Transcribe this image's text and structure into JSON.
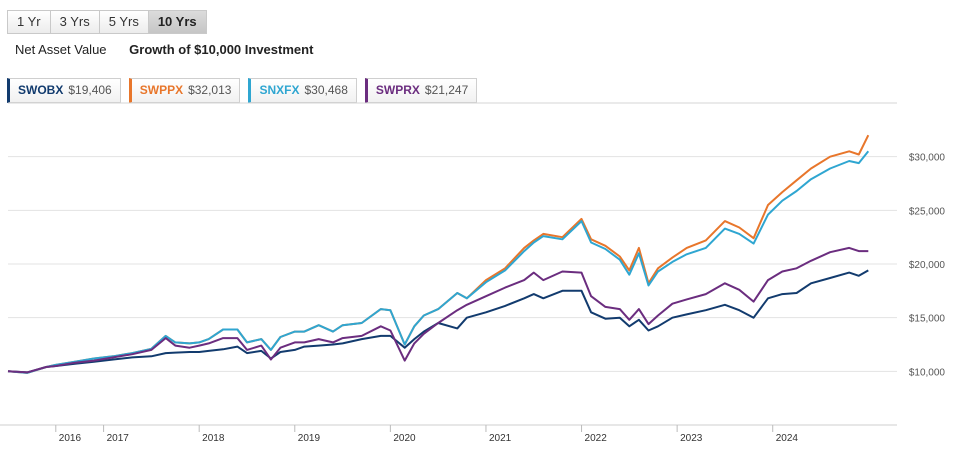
{
  "range_tabs": [
    {
      "label": "1 Yr",
      "active": false
    },
    {
      "label": "3 Yrs",
      "active": false
    },
    {
      "label": "5 Yrs",
      "active": false
    },
    {
      "label": "10 Yrs",
      "active": true
    }
  ],
  "view_tabs": [
    {
      "label": "Net Asset Value",
      "active": false
    },
    {
      "label": "Growth of $10,000 Investment",
      "active": true
    }
  ],
  "chart_data": {
    "type": "line",
    "title": "",
    "xlabel": "",
    "ylabel": "",
    "x_tick_labels": [
      "2016",
      "2017",
      "2018",
      "2019",
      "2020",
      "2021",
      "2022",
      "2023",
      "2024"
    ],
    "x_tick_years": [
      2016.0,
      2016.5,
      2017.5,
      2018.5,
      2019.5,
      2020.5,
      2021.5,
      2022.5,
      2023.5
    ],
    "x_range": [
      2015.5,
      2024.8
    ],
    "y_ticks": [
      10000,
      15000,
      20000,
      25000,
      30000
    ],
    "y_tick_labels": [
      "$10,000",
      "$15,000",
      "$20,000",
      "$25,000",
      "$30,000"
    ],
    "ylim": [
      5000,
      35000
    ],
    "grid": true,
    "legend_position": "top",
    "series": [
      {
        "name": "SWOBX",
        "ending_value": "$19,406",
        "color": "#123b6e",
        "points": [
          [
            2015.5,
            10000
          ],
          [
            2015.7,
            9900
          ],
          [
            2015.9,
            10400
          ],
          [
            2016.0,
            10500
          ],
          [
            2016.2,
            10700
          ],
          [
            2016.4,
            10900
          ],
          [
            2016.6,
            11100
          ],
          [
            2016.8,
            11300
          ],
          [
            2017.0,
            11400
          ],
          [
            2017.15,
            11700
          ],
          [
            2017.25,
            11750
          ],
          [
            2017.4,
            11800
          ],
          [
            2017.5,
            11800
          ],
          [
            2017.6,
            11900
          ],
          [
            2017.75,
            12050
          ],
          [
            2017.9,
            12300
          ],
          [
            2018.0,
            11700
          ],
          [
            2018.15,
            11900
          ],
          [
            2018.25,
            11200
          ],
          [
            2018.35,
            11800
          ],
          [
            2018.5,
            12000
          ],
          [
            2018.6,
            12300
          ],
          [
            2018.75,
            12400
          ],
          [
            2018.9,
            12500
          ],
          [
            2019.0,
            12600
          ],
          [
            2019.2,
            13000
          ],
          [
            2019.4,
            13300
          ],
          [
            2019.5,
            13300
          ],
          [
            2019.65,
            12200
          ],
          [
            2019.75,
            13000
          ],
          [
            2019.85,
            13700
          ],
          [
            2020.0,
            14500
          ],
          [
            2020.2,
            14000
          ],
          [
            2020.3,
            15000
          ],
          [
            2020.5,
            15500
          ],
          [
            2020.7,
            16100
          ],
          [
            2020.9,
            16800
          ],
          [
            2021.0,
            17200
          ],
          [
            2021.1,
            16800
          ],
          [
            2021.3,
            17500
          ],
          [
            2021.5,
            17500
          ],
          [
            2021.6,
            15500
          ],
          [
            2021.75,
            14900
          ],
          [
            2021.9,
            15000
          ],
          [
            2022.0,
            14200
          ],
          [
            2022.1,
            14800
          ],
          [
            2022.2,
            13800
          ],
          [
            2022.3,
            14200
          ],
          [
            2022.45,
            15000
          ],
          [
            2022.6,
            15300
          ],
          [
            2022.8,
            15700
          ],
          [
            2023.0,
            16200
          ],
          [
            2023.15,
            15700
          ],
          [
            2023.3,
            15000
          ],
          [
            2023.45,
            16800
          ],
          [
            2023.6,
            17200
          ],
          [
            2023.75,
            17300
          ],
          [
            2023.9,
            18200
          ],
          [
            2024.1,
            18700
          ],
          [
            2024.3,
            19200
          ],
          [
            2024.4,
            18900
          ],
          [
            2024.5,
            19400
          ]
        ]
      },
      {
        "name": "SWPPX",
        "ending_value": "$32,013",
        "color": "#e8762b",
        "points": [
          [
            2015.5,
            10000
          ],
          [
            2015.7,
            9850
          ],
          [
            2015.9,
            10400
          ],
          [
            2016.0,
            10600
          ],
          [
            2016.2,
            10900
          ],
          [
            2016.4,
            11200
          ],
          [
            2016.6,
            11400
          ],
          [
            2016.8,
            11700
          ],
          [
            2017.0,
            12100
          ],
          [
            2017.15,
            13300
          ],
          [
            2017.25,
            12700
          ],
          [
            2017.4,
            12600
          ],
          [
            2017.5,
            12700
          ],
          [
            2017.6,
            13000
          ],
          [
            2017.75,
            13900
          ],
          [
            2017.9,
            13900
          ],
          [
            2018.0,
            12700
          ],
          [
            2018.15,
            13000
          ],
          [
            2018.25,
            12000
          ],
          [
            2018.35,
            13200
          ],
          [
            2018.5,
            13700
          ],
          [
            2018.6,
            13700
          ],
          [
            2018.75,
            14300
          ],
          [
            2018.9,
            13700
          ],
          [
            2019.0,
            14300
          ],
          [
            2019.2,
            14500
          ],
          [
            2019.4,
            15800
          ],
          [
            2019.5,
            15700
          ],
          [
            2019.65,
            12500
          ],
          [
            2019.75,
            14200
          ],
          [
            2019.85,
            15200
          ],
          [
            2020.0,
            15800
          ],
          [
            2020.2,
            17300
          ],
          [
            2020.3,
            16800
          ],
          [
            2020.5,
            18500
          ],
          [
            2020.7,
            19600
          ],
          [
            2020.9,
            21500
          ],
          [
            2021.0,
            22200
          ],
          [
            2021.1,
            22800
          ],
          [
            2021.3,
            22500
          ],
          [
            2021.5,
            24200
          ],
          [
            2021.6,
            22300
          ],
          [
            2021.75,
            21700
          ],
          [
            2021.9,
            20700
          ],
          [
            2022.0,
            19400
          ],
          [
            2022.1,
            21500
          ],
          [
            2022.2,
            18200
          ],
          [
            2022.3,
            19600
          ],
          [
            2022.45,
            20600
          ],
          [
            2022.6,
            21500
          ],
          [
            2022.8,
            22200
          ],
          [
            2023.0,
            24000
          ],
          [
            2023.15,
            23400
          ],
          [
            2023.3,
            22400
          ],
          [
            2023.45,
            25500
          ],
          [
            2023.6,
            26700
          ],
          [
            2023.75,
            27800
          ],
          [
            2023.9,
            28900
          ],
          [
            2024.1,
            30000
          ],
          [
            2024.3,
            30500
          ],
          [
            2024.4,
            30200
          ],
          [
            2024.5,
            32000
          ]
        ]
      },
      {
        "name": "SNXFX",
        "ending_value": "$30,468",
        "color": "#2fa6d1",
        "points": [
          [
            2015.5,
            10000
          ],
          [
            2015.7,
            9850
          ],
          [
            2015.9,
            10400
          ],
          [
            2016.0,
            10600
          ],
          [
            2016.2,
            10900
          ],
          [
            2016.4,
            11200
          ],
          [
            2016.6,
            11400
          ],
          [
            2016.8,
            11700
          ],
          [
            2017.0,
            12100
          ],
          [
            2017.15,
            13300
          ],
          [
            2017.25,
            12700
          ],
          [
            2017.4,
            12600
          ],
          [
            2017.5,
            12700
          ],
          [
            2017.6,
            13000
          ],
          [
            2017.75,
            13900
          ],
          [
            2017.9,
            13900
          ],
          [
            2018.0,
            12700
          ],
          [
            2018.15,
            13000
          ],
          [
            2018.25,
            12000
          ],
          [
            2018.35,
            13200
          ],
          [
            2018.5,
            13700
          ],
          [
            2018.6,
            13700
          ],
          [
            2018.75,
            14300
          ],
          [
            2018.9,
            13700
          ],
          [
            2019.0,
            14300
          ],
          [
            2019.2,
            14500
          ],
          [
            2019.4,
            15800
          ],
          [
            2019.5,
            15700
          ],
          [
            2019.65,
            12500
          ],
          [
            2019.75,
            14200
          ],
          [
            2019.85,
            15200
          ],
          [
            2020.0,
            15800
          ],
          [
            2020.2,
            17300
          ],
          [
            2020.3,
            16800
          ],
          [
            2020.5,
            18300
          ],
          [
            2020.7,
            19400
          ],
          [
            2020.9,
            21200
          ],
          [
            2021.0,
            22000
          ],
          [
            2021.1,
            22600
          ],
          [
            2021.3,
            22300
          ],
          [
            2021.5,
            24000
          ],
          [
            2021.6,
            22000
          ],
          [
            2021.75,
            21400
          ],
          [
            2021.9,
            20400
          ],
          [
            2022.0,
            19000
          ],
          [
            2022.1,
            21000
          ],
          [
            2022.2,
            18000
          ],
          [
            2022.3,
            19300
          ],
          [
            2022.45,
            20200
          ],
          [
            2022.6,
            20900
          ],
          [
            2022.8,
            21500
          ],
          [
            2023.0,
            23300
          ],
          [
            2023.15,
            22800
          ],
          [
            2023.3,
            21900
          ],
          [
            2023.45,
            24600
          ],
          [
            2023.6,
            25900
          ],
          [
            2023.75,
            26800
          ],
          [
            2023.9,
            27900
          ],
          [
            2024.1,
            28900
          ],
          [
            2024.3,
            29600
          ],
          [
            2024.4,
            29400
          ],
          [
            2024.5,
            30500
          ]
        ]
      },
      {
        "name": "SWPRX",
        "ending_value": "$21,247",
        "color": "#6b2d7f",
        "points": [
          [
            2015.5,
            10000
          ],
          [
            2015.7,
            9900
          ],
          [
            2015.9,
            10400
          ],
          [
            2016.0,
            10500
          ],
          [
            2016.2,
            10800
          ],
          [
            2016.4,
            11000
          ],
          [
            2016.6,
            11300
          ],
          [
            2016.8,
            11600
          ],
          [
            2017.0,
            12000
          ],
          [
            2017.15,
            13100
          ],
          [
            2017.25,
            12400
          ],
          [
            2017.4,
            12200
          ],
          [
            2017.5,
            12400
          ],
          [
            2017.6,
            12600
          ],
          [
            2017.75,
            13100
          ],
          [
            2017.9,
            13100
          ],
          [
            2018.0,
            12000
          ],
          [
            2018.15,
            12400
          ],
          [
            2018.25,
            11100
          ],
          [
            2018.35,
            12200
          ],
          [
            2018.5,
            12700
          ],
          [
            2018.6,
            12700
          ],
          [
            2018.75,
            13000
          ],
          [
            2018.9,
            12700
          ],
          [
            2019.0,
            13100
          ],
          [
            2019.2,
            13300
          ],
          [
            2019.4,
            14200
          ],
          [
            2019.5,
            13800
          ],
          [
            2019.65,
            11000
          ],
          [
            2019.75,
            12600
          ],
          [
            2019.85,
            13500
          ],
          [
            2020.0,
            14500
          ],
          [
            2020.2,
            15700
          ],
          [
            2020.3,
            16200
          ],
          [
            2020.5,
            17000
          ],
          [
            2020.7,
            17800
          ],
          [
            2020.9,
            18500
          ],
          [
            2021.0,
            19200
          ],
          [
            2021.1,
            18500
          ],
          [
            2021.3,
            19300
          ],
          [
            2021.5,
            19200
          ],
          [
            2021.6,
            17000
          ],
          [
            2021.75,
            16000
          ],
          [
            2021.9,
            15800
          ],
          [
            2022.0,
            14800
          ],
          [
            2022.1,
            15800
          ],
          [
            2022.2,
            14400
          ],
          [
            2022.3,
            15200
          ],
          [
            2022.45,
            16300
          ],
          [
            2022.6,
            16700
          ],
          [
            2022.8,
            17200
          ],
          [
            2023.0,
            18200
          ],
          [
            2023.15,
            17600
          ],
          [
            2023.3,
            16500
          ],
          [
            2023.45,
            18500
          ],
          [
            2023.6,
            19300
          ],
          [
            2023.75,
            19600
          ],
          [
            2023.9,
            20300
          ],
          [
            2024.1,
            21100
          ],
          [
            2024.3,
            21500
          ],
          [
            2024.4,
            21200
          ],
          [
            2024.5,
            21200
          ]
        ]
      }
    ]
  }
}
